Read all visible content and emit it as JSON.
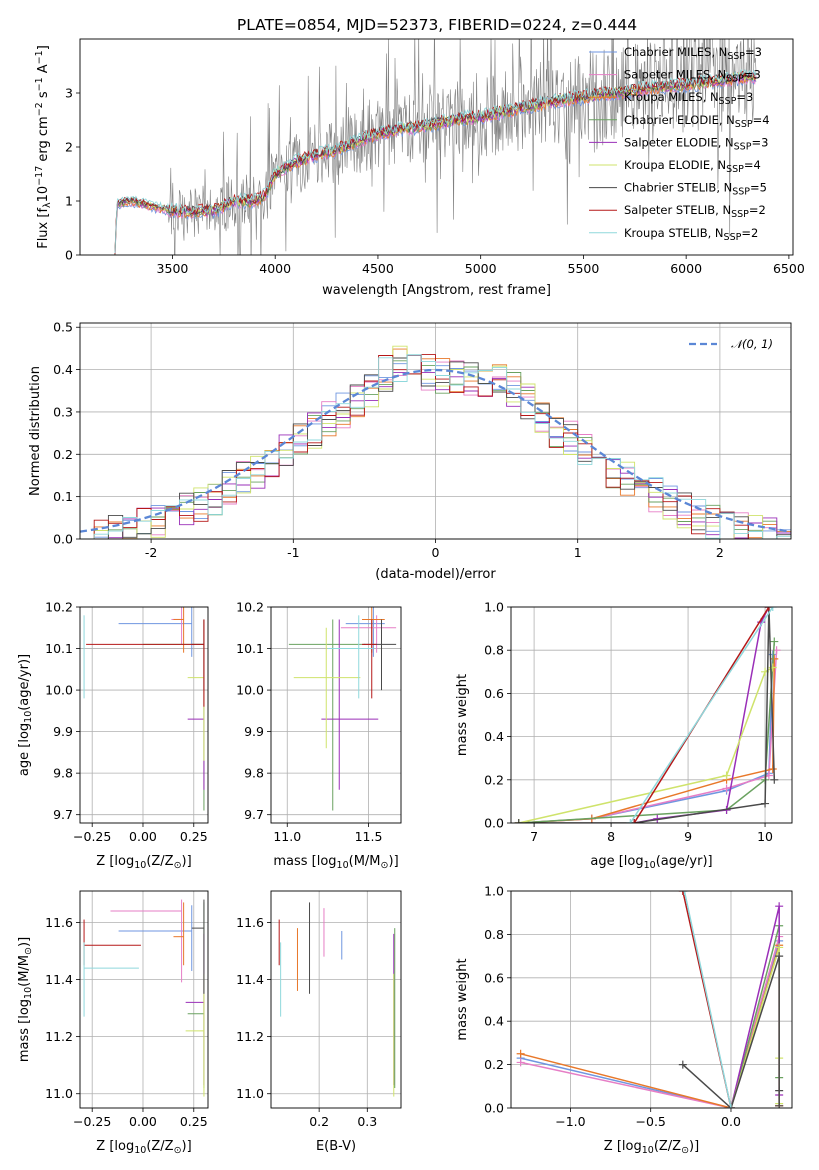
{
  "title": "PLATE=0854, MJD=52373, FIBERID=0224, z=0.444",
  "colors": {
    "c0": "#6f96e0",
    "c1": "#e67ec6",
    "c2": "#e8782a",
    "c3": "#6aa260",
    "c4": "#9a2fb8",
    "c5": "#cfe36b",
    "c6": "#4a4a4a",
    "c7": "#b51818",
    "c8": "#8fd8dc",
    "normal": "#5b87d6",
    "grid": "#b0b0b0",
    "obs": "#808080"
  },
  "legend_items": [
    {
      "label": "Chabrier MILES, N",
      "sub": "SSP",
      "tail": "=3",
      "color": "#6f96e0"
    },
    {
      "label": "Salpeter MILES, N",
      "sub": "SSP",
      "tail": "=3",
      "color": "#e67ec6"
    },
    {
      "label": "Kroupa MILES, N",
      "sub": "SSP",
      "tail": "=3",
      "color": "#e8782a"
    },
    {
      "label": "Chabrier ELODIE, N",
      "sub": "SSP",
      "tail": "=4",
      "color": "#6aa260"
    },
    {
      "label": "Salpeter ELODIE, N",
      "sub": "SSP",
      "tail": "=3",
      "color": "#9a2fb8"
    },
    {
      "label": "Kroupa ELODIE, N",
      "sub": "SSP",
      "tail": "=4",
      "color": "#cfe36b"
    },
    {
      "label": "Chabrier STELIB, N",
      "sub": "SSP",
      "tail": "=5",
      "color": "#4a4a4a"
    },
    {
      "label": "Salpeter STELIB, N",
      "sub": "SSP",
      "tail": "=2",
      "color": "#b51818"
    },
    {
      "label": "Kroupa STELIB, N",
      "sub": "SSP",
      "tail": "=2",
      "color": "#8fd8dc"
    }
  ],
  "chart_data": [
    {
      "type": "line",
      "xlabel": "wavelength [Angstrom, rest frame]",
      "ylabel_parts": [
        "Flux [f",
        "λ",
        "10",
        "−17",
        " erg cm",
        "−2",
        " s",
        "−1",
        " A",
        "−1",
        "]"
      ],
      "xlim": [
        3050,
        6520
      ],
      "ylim": [
        0,
        4.0
      ],
      "xticks": [
        3500,
        4000,
        4500,
        5000,
        5500,
        6000,
        6500
      ],
      "yticks": [
        0,
        1,
        2,
        3
      ],
      "continuum": [
        [
          3220,
          0.0
        ],
        [
          3230,
          0.95
        ],
        [
          3300,
          1.0
        ],
        [
          3400,
          0.9
        ],
        [
          3500,
          0.82
        ],
        [
          3600,
          0.8
        ],
        [
          3700,
          0.82
        ],
        [
          3800,
          1.0
        ],
        [
          3900,
          1.0
        ],
        [
          3950,
          1.1
        ],
        [
          4000,
          1.5
        ],
        [
          4100,
          1.72
        ],
        [
          4200,
          1.85
        ],
        [
          4300,
          1.95
        ],
        [
          4400,
          2.1
        ],
        [
          4500,
          2.25
        ],
        [
          4600,
          2.32
        ],
        [
          4700,
          2.38
        ],
        [
          4800,
          2.45
        ],
        [
          4900,
          2.52
        ],
        [
          5000,
          2.55
        ],
        [
          5100,
          2.65
        ],
        [
          5200,
          2.72
        ],
        [
          5300,
          2.8
        ],
        [
          5400,
          2.88
        ],
        [
          5500,
          2.92
        ],
        [
          5600,
          2.98
        ],
        [
          5700,
          3.02
        ],
        [
          5800,
          3.08
        ],
        [
          5900,
          3.12
        ],
        [
          6000,
          3.15
        ],
        [
          6100,
          3.2
        ],
        [
          6200,
          3.25
        ],
        [
          6300,
          3.3
        ],
        [
          6340,
          3.3
        ]
      ],
      "noise_start": 3480,
      "legend_position": "upper-right"
    },
    {
      "type": "step",
      "xlabel": "(data-model)/error",
      "ylabel": "Normed distribution",
      "xlim": [
        -2.5,
        2.5
      ],
      "ylim": [
        0,
        0.51
      ],
      "xticks": [
        -2,
        -1,
        0,
        1,
        2
      ],
      "yticks": [
        0.0,
        0.1,
        0.2,
        0.3,
        0.4,
        0.5
      ],
      "ytick_labels": [
        "0.0",
        "0.1",
        "0.2",
        "0.3",
        "0.4",
        "0.5"
      ],
      "bin_width": 0.1,
      "legend": "𝒩(0, 1)",
      "legend_position": "upper-right"
    },
    {
      "type": "errorbar",
      "xlabel": "Z [log",
      "xlabel_sub": "10",
      "xlabel_tail": "(Z/Z",
      "xlabel_end": ")]",
      "ylabel": "age  [log",
      "ylabel_sub": "10",
      "ylabel_tail": "(age/yr)]",
      "xlim": [
        -0.31,
        0.32
      ],
      "ylim": [
        9.68,
        10.2
      ],
      "xticks": [
        -0.25,
        0.0,
        0.25
      ],
      "xtick_labels": [
        "−0.25",
        "0.00",
        "0.25"
      ],
      "yticks": [
        9.7,
        9.8,
        9.9,
        10.0,
        10.1,
        10.2
      ],
      "ytick_labels": [
        "9.7",
        "9.8",
        "9.9",
        "10.0",
        "10.1",
        "10.2"
      ],
      "points": [
        {
          "x": 0.24,
          "y": 10.16,
          "xerr": [
            0.36,
            0.0
          ],
          "yerr": [
            0.08,
            0.04
          ],
          "c": "c0"
        },
        {
          "x": 0.19,
          "y": 10.17,
          "xerr": [
            0.05,
            0.0
          ],
          "yerr": [
            0.06,
            0.03
          ],
          "c": "c1"
        },
        {
          "x": 0.2,
          "y": 10.17,
          "xerr": [
            0.05,
            0.0
          ],
          "yerr": [
            0.08,
            0.03
          ],
          "c": "c2"
        },
        {
          "x": 0.3,
          "y": 10.11,
          "xerr": [
            0.3,
            0.0
          ],
          "yerr": [
            0.4,
            0.06
          ],
          "c": "c3"
        },
        {
          "x": 0.3,
          "y": 9.93,
          "xerr": [
            0.08,
            0.0
          ],
          "yerr": [
            0.17,
            0.24
          ],
          "c": "c4"
        },
        {
          "x": 0.3,
          "y": 10.03,
          "xerr": [
            0.08,
            0.0
          ],
          "yerr": [
            0.2,
            0.14
          ],
          "c": "c5"
        },
        {
          "x": 0.3,
          "y": 10.11,
          "xerr": [
            0.06,
            0.0
          ],
          "yerr": [
            0.11,
            0.06
          ],
          "c": "c6"
        },
        {
          "x": 0.3,
          "y": 10.11,
          "xerr": [
            0.58,
            0.0
          ],
          "yerr": [
            0.15,
            0.06
          ],
          "c": "c7"
        },
        {
          "x": -0.29,
          "y": 10.1,
          "xerr": [
            0.0,
            0.0
          ],
          "yerr": [
            0.12,
            0.08
          ],
          "c": "c8"
        }
      ]
    },
    {
      "type": "errorbar",
      "xlabel": "mass [log",
      "xlabel_sub": "10",
      "xlabel_tail": "(M/M",
      "xlabel_end": ")]",
      "xlim": [
        10.9,
        11.7
      ],
      "ylim": [
        9.68,
        10.2
      ],
      "xticks": [
        11.0,
        11.5
      ],
      "xtick_labels": [
        "11.0",
        "11.5"
      ],
      "yticks": [
        9.7,
        9.8,
        9.9,
        10.0,
        10.1,
        10.2
      ],
      "ytick_labels": [
        "9.7",
        "9.8",
        "9.9",
        "10.0",
        "10.1",
        "10.2"
      ],
      "points": [
        {
          "x": 11.53,
          "y": 10.16,
          "xerr": [
            0.17,
            0.07
          ],
          "yerr": [
            0.08,
            0.04
          ],
          "c": "c0"
        },
        {
          "x": 11.55,
          "y": 10.15,
          "xerr": [
            0.22,
            0.12
          ],
          "yerr": [
            0.06,
            0.03
          ],
          "c": "c1"
        },
        {
          "x": 11.52,
          "y": 10.17,
          "xerr": [
            0.06,
            0.08
          ],
          "yerr": [
            0.08,
            0.03
          ],
          "c": "c2"
        },
        {
          "x": 11.28,
          "y": 10.11,
          "xerr": [
            0.27,
            0.2
          ],
          "yerr": [
            0.4,
            0.06
          ],
          "c": "c3"
        },
        {
          "x": 11.32,
          "y": 9.93,
          "xerr": [
            0.11,
            0.24
          ],
          "yerr": [
            0.17,
            0.24
          ],
          "c": "c4"
        },
        {
          "x": 11.24,
          "y": 10.03,
          "xerr": [
            0.2,
            0.21
          ],
          "yerr": [
            0.17,
            0.12
          ],
          "c": "c5"
        },
        {
          "x": 11.58,
          "y": 10.11,
          "xerr": [
            0.11,
            0.09
          ],
          "yerr": [
            0.11,
            0.06
          ],
          "c": "c6"
        },
        {
          "x": 11.52,
          "y": 10.11,
          "xerr": [
            0.06,
            0.03
          ],
          "yerr": [
            0.13,
            0.06
          ],
          "c": "c7"
        },
        {
          "x": 11.44,
          "y": 10.1,
          "xerr": [
            0.19,
            0.09
          ],
          "yerr": [
            0.12,
            0.08
          ],
          "c": "c8"
        }
      ]
    },
    {
      "type": "line",
      "xlabel": "age  [log",
      "xlabel_sub": "10",
      "xlabel_tail": "(age/yr)]",
      "ylabel": "mass weight",
      "xlim": [
        6.7,
        10.35
      ],
      "ylim": [
        0,
        1.0
      ],
      "xticks": [
        7,
        8,
        9,
        10
      ],
      "xtick_labels": [
        "7",
        "8",
        "9",
        "10"
      ],
      "yticks": [
        0,
        0.2,
        0.4,
        0.6,
        0.8,
        1.0
      ],
      "ytick_labels": [
        "0.0",
        "0.2",
        "0.4",
        "0.6",
        "0.8",
        "1.0"
      ],
      "series": [
        {
          "c": "c0",
          "x": [
            6.8,
            7.75,
            9.5,
            10.05,
            10.1
          ],
          "y": [
            0.0,
            0.02,
            0.15,
            0.23,
            0.78
          ]
        },
        {
          "c": "c1",
          "x": [
            6.8,
            7.75,
            9.5,
            10.05,
            10.15
          ],
          "y": [
            0.0,
            0.02,
            0.16,
            0.22,
            0.8
          ]
        },
        {
          "c": "c2",
          "x": [
            6.8,
            7.75,
            9.5,
            10.1,
            10.12
          ],
          "y": [
            0.0,
            0.02,
            0.2,
            0.25,
            0.76
          ]
        },
        {
          "c": "c3",
          "x": [
            6.8,
            9.5,
            10.0,
            10.12
          ],
          "y": [
            0.0,
            0.06,
            0.2,
            0.84
          ]
        },
        {
          "c": "c4",
          "x": [
            8.3,
            8.6,
            9.5,
            9.95,
            10.05
          ],
          "y": [
            0.0,
            0.02,
            0.06,
            0.93,
            1.0
          ]
        },
        {
          "c": "c5",
          "x": [
            6.8,
            9.5,
            10.0,
            10.1
          ],
          "y": [
            0.0,
            0.22,
            0.7,
            0.72
          ]
        },
        {
          "c": "c6",
          "x": [
            6.8,
            8.3,
            10.0,
            10.05,
            10.12
          ],
          "y": [
            0.0,
            0.0,
            0.09,
            1.0,
            0.2
          ]
        },
        {
          "c": "c7",
          "x": [
            8.3,
            10.05
          ],
          "y": [
            0.0,
            1.0
          ]
        },
        {
          "c": "c8",
          "x": [
            8.25,
            10.1
          ],
          "y": [
            0.0,
            1.0
          ]
        }
      ]
    },
    {
      "type": "errorbar",
      "xlabel": "Z [log",
      "xlabel_sub": "10",
      "xlabel_tail": "(Z/Z",
      "xlabel_end": ")]",
      "ylabel": "mass [log",
      "ylabel_sub": "10",
      "ylabel_tail": "(M/M",
      "ylabel_end": ")]",
      "xlim": [
        -0.31,
        0.32
      ],
      "ylim": [
        10.95,
        11.71
      ],
      "xticks": [
        -0.25,
        0.0,
        0.25
      ],
      "xtick_labels": [
        "−0.25",
        "0.00",
        "0.25"
      ],
      "yticks": [
        11.0,
        11.2,
        11.4,
        11.6
      ],
      "ytick_labels": [
        "11.0",
        "11.2",
        "11.4",
        "11.6"
      ],
      "points": [
        {
          "x": 0.24,
          "y": 11.57,
          "xerr": [
            0.36,
            0.0
          ],
          "yerr": [
            0.14,
            0.09
          ],
          "c": "c0"
        },
        {
          "x": 0.19,
          "y": 11.64,
          "xerr": [
            0.35,
            0.0
          ],
          "yerr": [
            0.25,
            0.04
          ],
          "c": "c1"
        },
        {
          "x": 0.2,
          "y": 11.55,
          "xerr": [
            0.05,
            0.0
          ],
          "yerr": [
            0.1,
            0.12
          ],
          "c": "c2"
        },
        {
          "x": 0.3,
          "y": 11.28,
          "xerr": [
            0.08,
            0.0
          ],
          "yerr": [
            0.26,
            0.39
          ],
          "c": "c3"
        },
        {
          "x": 0.3,
          "y": 11.32,
          "xerr": [
            0.09,
            0.0
          ],
          "yerr": [
            0.29,
            0.24
          ],
          "c": "c4"
        },
        {
          "x": 0.3,
          "y": 11.22,
          "xerr": [
            0.09,
            0.0
          ],
          "yerr": [
            0.23,
            0.2
          ],
          "c": "c5"
        },
        {
          "x": 0.3,
          "y": 11.58,
          "xerr": [
            0.06,
            0.0
          ],
          "yerr": [
            0.23,
            0.1
          ],
          "c": "c6"
        },
        {
          "x": -0.29,
          "y": 11.52,
          "xerr": [
            0.0,
            0.28
          ],
          "yerr": [
            0.07,
            0.09
          ],
          "c": "c7"
        },
        {
          "x": -0.29,
          "y": 11.44,
          "xerr": [
            0.0,
            0.27
          ],
          "yerr": [
            0.17,
            0.09
          ],
          "c": "c8"
        }
      ]
    },
    {
      "type": "errorbar",
      "xlabel": "E(B-V)",
      "xlim": [
        0.1,
        0.37
      ],
      "ylim": [
        10.95,
        11.71
      ],
      "xticks": [
        0.2,
        0.3
      ],
      "xtick_labels": [
        "0.2",
        "0.3"
      ],
      "yticks": [
        11.0,
        11.2,
        11.4,
        11.6
      ],
      "ytick_labels": [
        "11.0",
        "11.2",
        "11.4",
        "11.6"
      ],
      "points": [
        {
          "x": 0.117,
          "y": 11.52,
          "yerr": [
            0.07,
            0.09
          ],
          "c": "c7"
        },
        {
          "x": 0.12,
          "y": 11.44,
          "yerr": [
            0.17,
            0.09
          ],
          "c": "c8"
        },
        {
          "x": 0.155,
          "y": 11.5,
          "yerr": [
            0.14,
            0.08
          ],
          "c": "c2"
        },
        {
          "x": 0.18,
          "y": 11.52,
          "yerr": [
            0.17,
            0.15
          ],
          "c": "c6"
        },
        {
          "x": 0.21,
          "y": 11.58,
          "yerr": [
            0.1,
            0.07
          ],
          "c": "c1"
        },
        {
          "x": 0.247,
          "y": 11.52,
          "yerr": [
            0.05,
            0.05
          ],
          "c": "c0"
        },
        {
          "x": 0.355,
          "y": 11.32,
          "yerr": [
            0.29,
            0.24
          ],
          "c": "c4"
        },
        {
          "x": 0.355,
          "y": 11.22,
          "yerr": [
            0.23,
            0.2
          ],
          "c": "c5"
        },
        {
          "x": 0.357,
          "y": 11.28,
          "yerr": [
            0.26,
            0.3
          ],
          "c": "c3"
        }
      ]
    },
    {
      "type": "line",
      "xlabel": "Z [log",
      "xlabel_sub": "10",
      "xlabel_tail": "(Z/Z",
      "xlabel_end": ")]",
      "ylabel": "mass weight",
      "xlim": [
        -1.37,
        0.38
      ],
      "ylim": [
        0,
        1.0
      ],
      "xticks": [
        -1.0,
        -0.5,
        0.0
      ],
      "xtick_labels": [
        "−1.0",
        "−0.5",
        "0.0"
      ],
      "yticks": [
        0,
        0.2,
        0.4,
        0.6,
        0.8,
        1.0
      ],
      "ytick_labels": [
        "0.0",
        "0.2",
        "0.4",
        "0.6",
        "0.8",
        "1.0"
      ],
      "series": [
        {
          "c": "c0",
          "x": [
            -1.31,
            0.0,
            0.3,
            0.3
          ],
          "y": [
            0.23,
            0.0,
            0.77,
            0.01
          ]
        },
        {
          "c": "c1",
          "x": [
            -1.31,
            0.0,
            0.3,
            0.3
          ],
          "y": [
            0.21,
            0.0,
            0.79,
            0.01
          ]
        },
        {
          "c": "c2",
          "x": [
            -1.31,
            0.0,
            0.3,
            0.3
          ],
          "y": [
            0.25,
            0.0,
            0.75,
            0.01
          ]
        },
        {
          "c": "c3",
          "x": [
            0.0,
            0.3,
            0.3
          ],
          "y": [
            0.0,
            0.84,
            0.14
          ]
        },
        {
          "c": "c4",
          "x": [
            0.0,
            0.3,
            0.3
          ],
          "y": [
            0.0,
            0.93,
            0.06
          ]
        },
        {
          "c": "c5",
          "x": [
            0.0,
            0.3,
            0.3,
            0.3
          ],
          "y": [
            0.0,
            0.74,
            0.23,
            0.02
          ]
        },
        {
          "c": "c6",
          "x": [
            -0.3,
            0.0,
            0.3,
            0.3,
            0.3
          ],
          "y": [
            0.2,
            0.0,
            0.7,
            0.08,
            0.01
          ]
        },
        {
          "c": "c7",
          "x": [
            -0.3,
            0.0
          ],
          "y": [
            1.0,
            0.0
          ]
        },
        {
          "c": "c8",
          "x": [
            -0.29,
            0.0
          ],
          "y": [
            1.0,
            0.0
          ]
        }
      ]
    }
  ]
}
